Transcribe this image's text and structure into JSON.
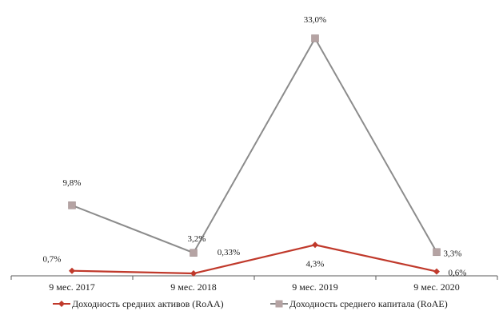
{
  "chart_data": {
    "type": "line",
    "categories": [
      "9 мес. 2017",
      "9 мес. 2018",
      "9 мес. 2019",
      "9 мес. 2020"
    ],
    "series": [
      {
        "name": "Доходность средних активов (RoAA)",
        "values": [
          0.7,
          0.33,
          4.3,
          0.6
        ],
        "labels": [
          "0,7%",
          "0,33%",
          "4,3%",
          "0,6%"
        ],
        "color": "#c0392b",
        "marker": "diamond"
      },
      {
        "name": "Доходность среднего капитала (RoAE)",
        "values": [
          9.8,
          3.2,
          33.0,
          3.3
        ],
        "labels": [
          "9,8%",
          "3,2%",
          "33,0%",
          "3,3%"
        ],
        "color": "#8c8c8c",
        "marker_color": "#b5a3a3",
        "marker": "square"
      }
    ],
    "ylim": [
      0,
      37
    ],
    "grid": false,
    "legend": "bottom"
  }
}
